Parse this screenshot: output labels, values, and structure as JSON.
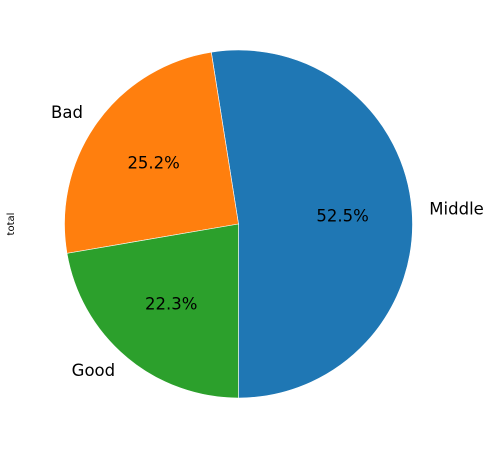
{
  "chart_data": {
    "type": "pie",
    "ylabel": "total",
    "legend": "none",
    "slices": [
      {
        "label": "Middle",
        "value": 52.5,
        "pct_label": "52.5%",
        "color": "#1f77b4"
      },
      {
        "label": "Bad",
        "value": 25.2,
        "pct_label": "25.2%",
        "color": "#ff7f0e"
      },
      {
        "label": "Good",
        "value": 22.3,
        "pct_label": "22.3%",
        "color": "#2ca02c"
      }
    ]
  }
}
